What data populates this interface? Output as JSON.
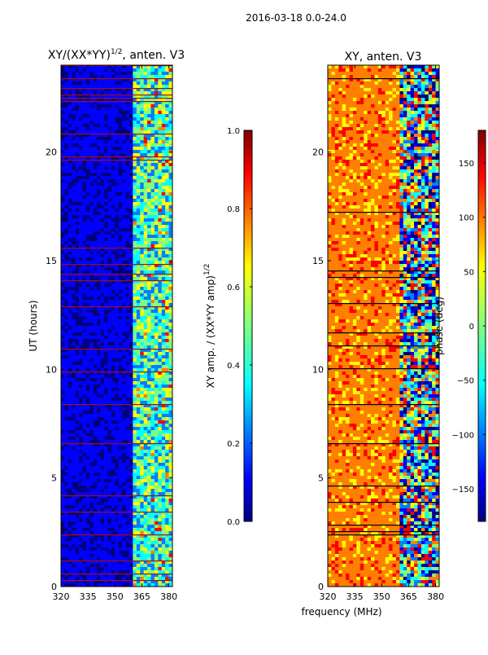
{
  "suptitle": "2016-03-18 0.0-24.0",
  "colors": {
    "jet": [
      "#00007f",
      "#0000ff",
      "#007fff",
      "#00ffff",
      "#7fff7f",
      "#ffff00",
      "#ff7f00",
      "#ff0000",
      "#7f0000"
    ]
  },
  "chart_data": [
    {
      "type": "heatmap",
      "title_main": "XY/(XX*YY)",
      "title_sup": "1/2",
      "title_tail": ", anten. V3",
      "ylabel": "UT (hours)",
      "xlim": [
        320,
        382
      ],
      "ylim": [
        0,
        24
      ],
      "xticks": [
        320,
        335,
        350,
        365,
        380
      ],
      "yticks": [
        0,
        5,
        10,
        15,
        20
      ],
      "ytick_labels": [
        "0",
        "5",
        "10",
        "15",
        "20"
      ],
      "colorbar": {
        "label": "XY amp. / (XX*YY amp)",
        "label_sup": "1/2",
        "range": [
          0.0,
          1.0
        ],
        "ticks": [
          0.0,
          0.2,
          0.4,
          0.6,
          0.8,
          1.0
        ],
        "tick_labels": [
          "0.0",
          "0.2",
          "0.4",
          "0.6",
          "0.8",
          "1.0"
        ]
      }
    },
    {
      "type": "heatmap",
      "title": "XY, anten. V3",
      "xlabel": "frequency (MHz)",
      "xlim": [
        320,
        382
      ],
      "ylim": [
        0,
        24
      ],
      "xticks": [
        320,
        335,
        350,
        365,
        380
      ],
      "yticks": [
        0,
        5,
        10,
        15,
        20
      ],
      "ytick_labels": [
        "0",
        "5",
        "10",
        "15",
        "20"
      ],
      "colorbar": {
        "label": "phase (deg)",
        "range": [
          -180,
          180
        ],
        "ticks": [
          -150,
          -100,
          -50,
          0,
          50,
          100,
          150
        ],
        "tick_labels": [
          "−150",
          "−100",
          "−50",
          "0",
          "50",
          "100",
          "150"
        ]
      }
    }
  ]
}
